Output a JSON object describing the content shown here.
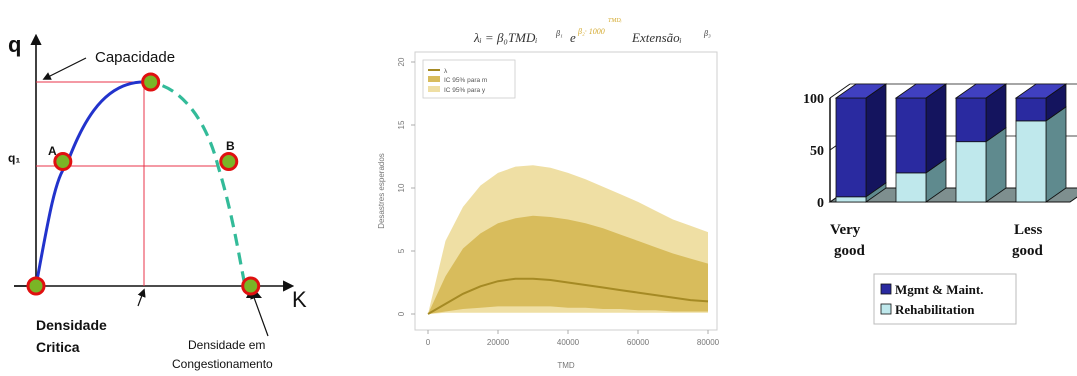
{
  "chart_data": [
    {
      "type": "line",
      "axes": {
        "y": "q",
        "x": "K"
      },
      "labels": {
        "capacity": "Capacidade",
        "q1": "q₁",
        "point_a": "A",
        "point_b": "B",
        "critical_density": [
          "Densidade",
          "Critica"
        ],
        "jam_density": [
          "Densidade em",
          "Congestionamento"
        ]
      },
      "series": [
        {
          "style": "solid",
          "color": "#2233cc"
        },
        {
          "style": "dashed",
          "color": "#33bb99"
        }
      ],
      "points": [
        {
          "k": 0,
          "q": 0
        },
        {
          "k": 0.11,
          "q": 0.61
        },
        {
          "k": 0.47,
          "q": 1
        },
        {
          "k": 0.79,
          "q": 0.61
        },
        {
          "k": 0.88,
          "q": 0
        }
      ],
      "colors": {
        "point_fill": "#7ab526",
        "point_ring": "#e01010",
        "guide": "#e8334a"
      }
    },
    {
      "type": "area",
      "title": "λᵢ = β₀TMDᵢ^β₁ e^β₂·TMD/1000 Extensãoᵢ^β₃",
      "title_parts": {
        "lhs": "λᵢ = β₀TMDᵢ",
        "exp1": "β₁",
        "e": "e",
        "exp2_top": "TMDᵢ",
        "exp2": "β₂· 1000",
        "ext": "Extensãoᵢ",
        "exp3": "β₃"
      },
      "xlabel": "TMD",
      "ylabel": "Desastres esperados",
      "xlim": [
        0,
        80000
      ],
      "ylim": [
        0,
        20
      ],
      "xticks": [
        "0",
        "20000",
        "40000",
        "60000",
        "80000"
      ],
      "yticks": [
        "0",
        "5",
        "10",
        "15",
        "20"
      ],
      "legend": {
        "position": "top-left",
        "entries": [
          "λ",
          "IC 95% para m",
          "IC 95% para y"
        ]
      },
      "x": [
        0,
        5000,
        10000,
        15000,
        20000,
        25000,
        30000,
        35000,
        40000,
        45000,
        50000,
        55000,
        60000,
        65000,
        70000,
        75000,
        80000
      ],
      "series": [
        {
          "name": "λ",
          "values": [
            0,
            0.8,
            1.6,
            2.2,
            2.6,
            2.8,
            2.8,
            2.7,
            2.5,
            2.3,
            2.1,
            1.9,
            1.7,
            1.5,
            1.3,
            1.1,
            1.0
          ]
        },
        {
          "name": "IC 95% para m",
          "lower": [
            0,
            0.2,
            0.4,
            0.5,
            0.6,
            0.6,
            0.6,
            0.6,
            0.5,
            0.5,
            0.4,
            0.4,
            0.3,
            0.3,
            0.2,
            0.2,
            0.2
          ],
          "upper": [
            0,
            3.0,
            5.2,
            6.4,
            7.2,
            7.6,
            7.8,
            7.7,
            7.5,
            7.2,
            6.8,
            6.3,
            5.8,
            5.3,
            4.8,
            4.4,
            4.0
          ]
        },
        {
          "name": "IC 95% para y",
          "lower": [
            0,
            0.1,
            0.1,
            0.1,
            0.1,
            0.1,
            0.1,
            0.1,
            0.1,
            0.1,
            0.1,
            0.1,
            0.1,
            0.1,
            0.1,
            0.1,
            0.1
          ],
          "upper": [
            0,
            5.8,
            8.5,
            10.2,
            11.2,
            11.7,
            11.8,
            11.6,
            11.2,
            10.7,
            10.1,
            9.5,
            8.9,
            8.2,
            7.5,
            7.0,
            6.5
          ]
        }
      ],
      "colors": {
        "line": "#a58a24",
        "band_m": "#d8bc5c",
        "band_y": "#efdfa4",
        "title": "#333333",
        "title_exp": "#d4aa30"
      }
    },
    {
      "type": "bar",
      "stacked": true,
      "ylim": [
        0,
        100
      ],
      "yticks": [
        "0",
        "50",
        "100"
      ],
      "xlabels": [
        [
          "Very",
          "good"
        ],
        [
          "Less",
          "good"
        ]
      ],
      "categories": [
        "1",
        "2",
        "3",
        "4"
      ],
      "series": [
        {
          "name": "Mgmt & Maint.",
          "values": [
            95,
            72,
            42,
            22
          ]
        },
        {
          "name": "Rehabilitation",
          "values": [
            5,
            28,
            58,
            78
          ]
        }
      ],
      "colors": {
        "mgmt_front": "#2a2aa0",
        "mgmt_side": "#14145e",
        "mgmt_top": "#4040c0",
        "rehab_front": "#bfe8ec",
        "rehab_side": "#5f8a8e",
        "rehab_top": "#dff5f7",
        "floor": "#7e8f8f"
      }
    }
  ]
}
